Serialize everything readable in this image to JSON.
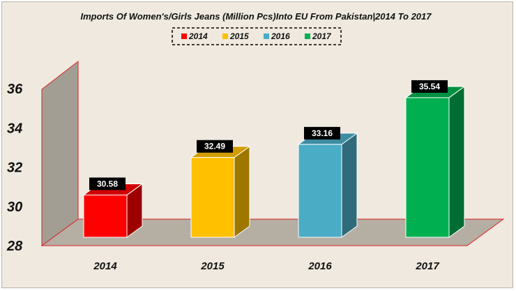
{
  "chart_data": {
    "type": "bar",
    "title": "Imports Of Women's/Girls Jeans (Million Pcs)Into EU From Pakistan|2014 To 2017",
    "categories": [
      "2014",
      "2015",
      "2016",
      "2017"
    ],
    "series": [
      {
        "name": "2014",
        "color": "#ff0000",
        "values": [
          30.58,
          null,
          null,
          null
        ]
      },
      {
        "name": "2015",
        "color": "#ffc000",
        "values": [
          null,
          32.49,
          null,
          null
        ]
      },
      {
        "name": "2016",
        "color": "#4bacc6",
        "values": [
          null,
          null,
          33.16,
          null
        ]
      },
      {
        "name": "2017",
        "color": "#00b050",
        "values": [
          null,
          null,
          null,
          35.54
        ]
      }
    ],
    "ylim": [
      28,
      36
    ],
    "yticks": [
      "28",
      "30",
      "32",
      "34",
      "36"
    ],
    "legend_position": "top",
    "grid": false,
    "style": "3d-column"
  }
}
